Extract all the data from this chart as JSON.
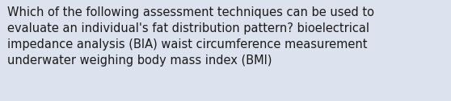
{
  "text": "Which of the following assessment techniques can be used to\nevaluate an individual's fat distribution pattern? bioelectrical\nimpedance analysis (BIA) waist circumference measurement\nunderwater weighing body mass index (BMI)",
  "background_color": "#dde3ee",
  "text_color": "#1a1a1a",
  "font_size": 10.5,
  "fig_width": 5.58,
  "fig_height": 1.26,
  "dpi": 100
}
